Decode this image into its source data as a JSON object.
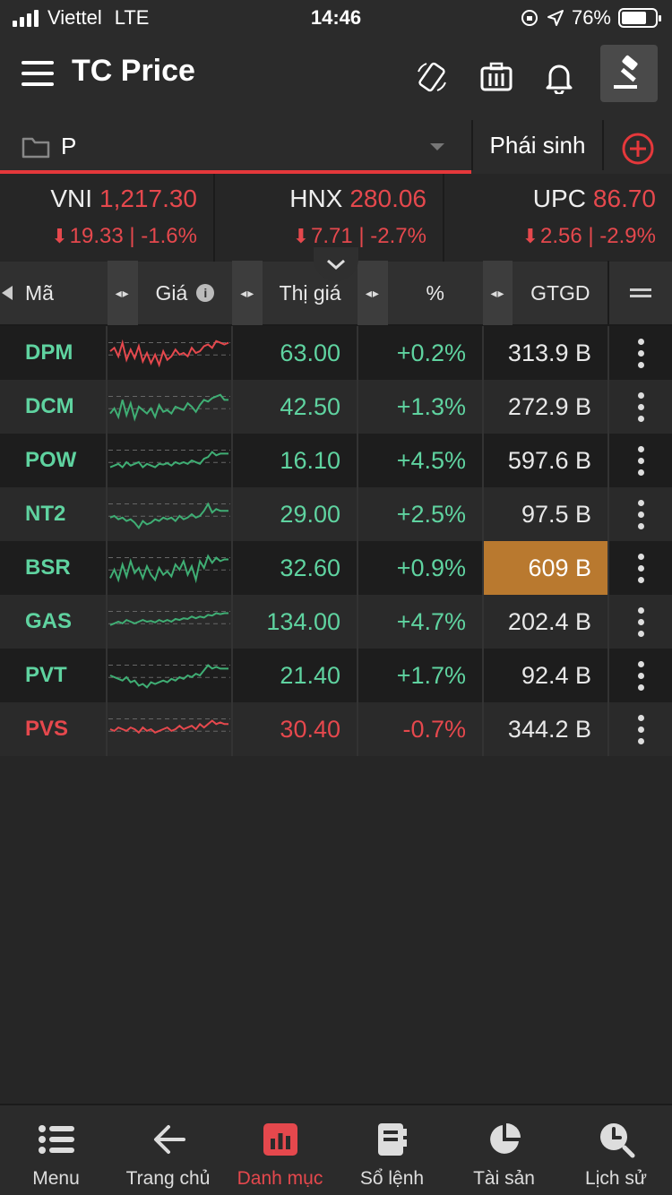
{
  "status_bar": {
    "carrier": "Viettel",
    "network": "LTE",
    "time": "14:46",
    "battery": "76%"
  },
  "header": {
    "title": "TC Price"
  },
  "watchlist": {
    "name": "P",
    "tab_derivative": "Phái sinh"
  },
  "indices": [
    {
      "name": "VNI",
      "value": "1,217.30",
      "change": "19.33 | -1.6%"
    },
    {
      "name": "HNX",
      "value": "280.06",
      "change": "7.71 | -2.7%"
    },
    {
      "name": "UPC",
      "value": "86.70",
      "change": "2.56 | -2.9%"
    }
  ],
  "table": {
    "headers": {
      "code": "Mã",
      "price": "Giá",
      "market_price": "Thị giá",
      "pct": "%",
      "value": "GTGD"
    },
    "rows": [
      {
        "code": "DPM",
        "market_price": "63.00",
        "pct": "+0.2%",
        "value": "313.9 B",
        "trend": "down",
        "highlight": false,
        "spark": [
          0.45,
          0.35,
          0.6,
          0.2,
          0.7,
          0.4,
          0.65,
          0.3,
          0.75,
          0.5,
          0.8,
          0.55,
          0.85,
          0.45,
          0.7,
          0.6,
          0.4,
          0.55,
          0.5,
          0.6,
          0.35,
          0.5,
          0.45,
          0.3,
          0.25,
          0.35,
          0.15,
          0.2,
          0.25,
          0.2
        ]
      },
      {
        "code": "DCM",
        "market_price": "42.50",
        "pct": "+1.3%",
        "value": "272.9 B",
        "trend": "up",
        "highlight": false,
        "spark": [
          0.7,
          0.55,
          0.8,
          0.3,
          0.75,
          0.4,
          0.85,
          0.5,
          0.6,
          0.7,
          0.55,
          0.8,
          0.45,
          0.65,
          0.6,
          0.7,
          0.5,
          0.55,
          0.6,
          0.4,
          0.5,
          0.65,
          0.45,
          0.3,
          0.35,
          0.25,
          0.2,
          0.15,
          0.3,
          0.3
        ]
      },
      {
        "code": "POW",
        "market_price": "16.10",
        "pct": "+4.5%",
        "value": "597.6 B",
        "trend": "up",
        "highlight": false,
        "spark": [
          0.7,
          0.65,
          0.6,
          0.7,
          0.55,
          0.65,
          0.6,
          0.55,
          0.7,
          0.6,
          0.65,
          0.7,
          0.6,
          0.62,
          0.58,
          0.65,
          0.55,
          0.6,
          0.55,
          0.6,
          0.5,
          0.55,
          0.6,
          0.45,
          0.4,
          0.25,
          0.35,
          0.3,
          0.3,
          0.3
        ]
      },
      {
        "code": "NT2",
        "market_price": "29.00",
        "pct": "+2.5%",
        "value": "97.5 B",
        "trend": "up",
        "highlight": false,
        "spark": [
          0.6,
          0.55,
          0.65,
          0.6,
          0.7,
          0.65,
          0.75,
          0.9,
          0.7,
          0.8,
          0.75,
          0.65,
          0.7,
          0.6,
          0.65,
          0.6,
          0.7,
          0.55,
          0.65,
          0.6,
          0.5,
          0.6,
          0.55,
          0.4,
          0.2,
          0.45,
          0.35,
          0.4,
          0.4,
          0.4
        ]
      },
      {
        "code": "BSR",
        "market_price": "32.60",
        "pct": "+0.9%",
        "value": "609 B",
        "trend": "up",
        "highlight": true,
        "spark": [
          0.8,
          0.55,
          0.85,
          0.4,
          0.75,
          0.3,
          0.65,
          0.5,
          0.8,
          0.45,
          0.7,
          0.85,
          0.5,
          0.7,
          0.6,
          0.75,
          0.4,
          0.55,
          0.3,
          0.7,
          0.45,
          0.85,
          0.3,
          0.5,
          0.15,
          0.35,
          0.2,
          0.3,
          0.25,
          0.25
        ]
      },
      {
        "code": "GAS",
        "market_price": "134.00",
        "pct": "+4.7%",
        "value": "202.4 B",
        "trend": "up",
        "highlight": false,
        "spark": [
          0.6,
          0.55,
          0.5,
          0.55,
          0.45,
          0.5,
          0.55,
          0.5,
          0.45,
          0.5,
          0.48,
          0.52,
          0.45,
          0.5,
          0.45,
          0.5,
          0.42,
          0.45,
          0.4,
          0.42,
          0.35,
          0.4,
          0.35,
          0.38,
          0.3,
          0.32,
          0.25,
          0.28,
          0.25,
          0.25
        ]
      },
      {
        "code": "PVT",
        "market_price": "21.40",
        "pct": "+1.7%",
        "value": "92.4 B",
        "trend": "up",
        "highlight": false,
        "spark": [
          0.5,
          0.55,
          0.6,
          0.65,
          0.55,
          0.7,
          0.65,
          0.8,
          0.75,
          0.85,
          0.7,
          0.75,
          0.7,
          0.65,
          0.7,
          0.6,
          0.65,
          0.55,
          0.6,
          0.5,
          0.55,
          0.45,
          0.5,
          0.35,
          0.2,
          0.3,
          0.25,
          0.3,
          0.3,
          0.3
        ]
      },
      {
        "code": "PVS",
        "market_price": "30.40",
        "pct": "-0.7%",
        "value": "344.2 B",
        "trend": "down",
        "highlight": false,
        "spark": [
          0.5,
          0.55,
          0.45,
          0.5,
          0.55,
          0.45,
          0.5,
          0.6,
          0.45,
          0.55,
          0.5,
          0.6,
          0.55,
          0.5,
          0.45,
          0.55,
          0.5,
          0.4,
          0.5,
          0.45,
          0.4,
          0.5,
          0.35,
          0.45,
          0.35,
          0.25,
          0.35,
          0.3,
          0.35,
          0.35
        ]
      }
    ]
  },
  "bottom_nav": [
    {
      "label": "Menu",
      "icon": "list-icon"
    },
    {
      "label": "Trang chủ",
      "icon": "back-arrow-icon"
    },
    {
      "label": "Danh mục",
      "icon": "bar-chart-icon"
    },
    {
      "label": "Sổ lệnh",
      "icon": "order-book-icon"
    },
    {
      "label": "Tài sản",
      "icon": "pie-chart-icon"
    },
    {
      "label": "Lịch sử",
      "icon": "history-icon"
    }
  ],
  "colors": {
    "up": "#5fd3a0",
    "down": "#e5484d",
    "highlight": "#b9792f",
    "accent": "#e5383b"
  }
}
